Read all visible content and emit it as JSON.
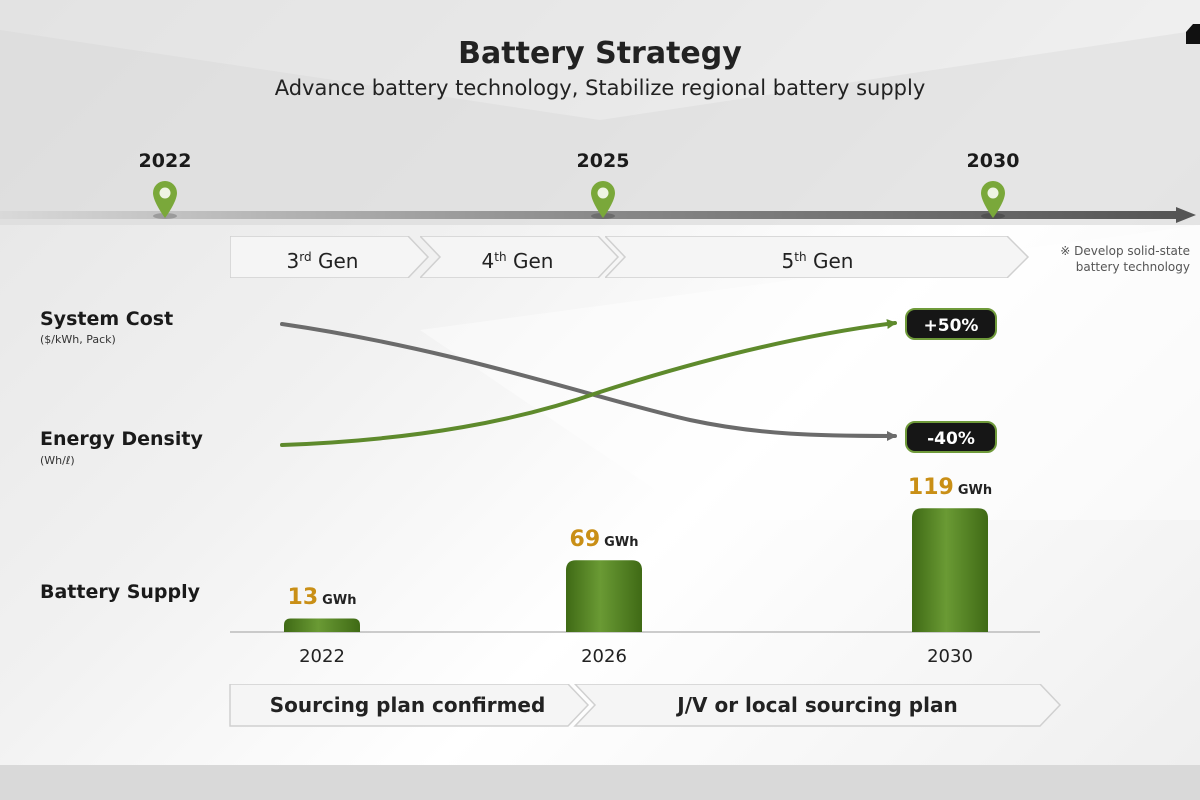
{
  "header": {
    "title": "Battery Strategy",
    "subtitle": "Advance battery technology, Stabilize regional battery supply"
  },
  "timeline": {
    "years": [
      "2022",
      "2025",
      "2030"
    ],
    "generations": [
      {
        "base": "3",
        "sup": "rd",
        "rest": " Gen"
      },
      {
        "base": "4",
        "sup": "th",
        "rest": " Gen"
      },
      {
        "base": "5",
        "sup": "th",
        "rest": " Gen"
      }
    ],
    "note_line1": "※ Develop solid-state",
    "note_line2": "battery technology"
  },
  "metrics": {
    "system_cost": {
      "label": "System Cost",
      "unit": "($/kWh, Pack)",
      "change": "-40%"
    },
    "energy_density": {
      "label": "Energy Density",
      "unit": "(Wh/ℓ)",
      "change": "+50%"
    }
  },
  "supply": {
    "label": "Battery Supply"
  },
  "sourcing": {
    "phase1": "Sourcing plan confirmed",
    "phase2": "J/V or local sourcing plan"
  },
  "colors": {
    "accent_green": "#5e8a2c",
    "bar_green": "#4f7a1f",
    "value_gold": "#c98f16",
    "cost_line": "#6b6b6b",
    "pill_bg": "#161616"
  },
  "chart_data": [
    {
      "type": "bar",
      "categories": [
        "2022",
        "2026",
        "2030"
      ],
      "values": [
        13,
        69,
        119
      ],
      "unit": "GWh",
      "value_labels": [
        "13",
        "69",
        "119"
      ],
      "ylim": [
        0,
        125
      ]
    },
    {
      "type": "line",
      "x": [
        2022,
        2030
      ],
      "series": [
        {
          "name": "System Cost",
          "relative_change": -40
        },
        {
          "name": "Energy Density",
          "relative_change": 50
        }
      ]
    }
  ]
}
